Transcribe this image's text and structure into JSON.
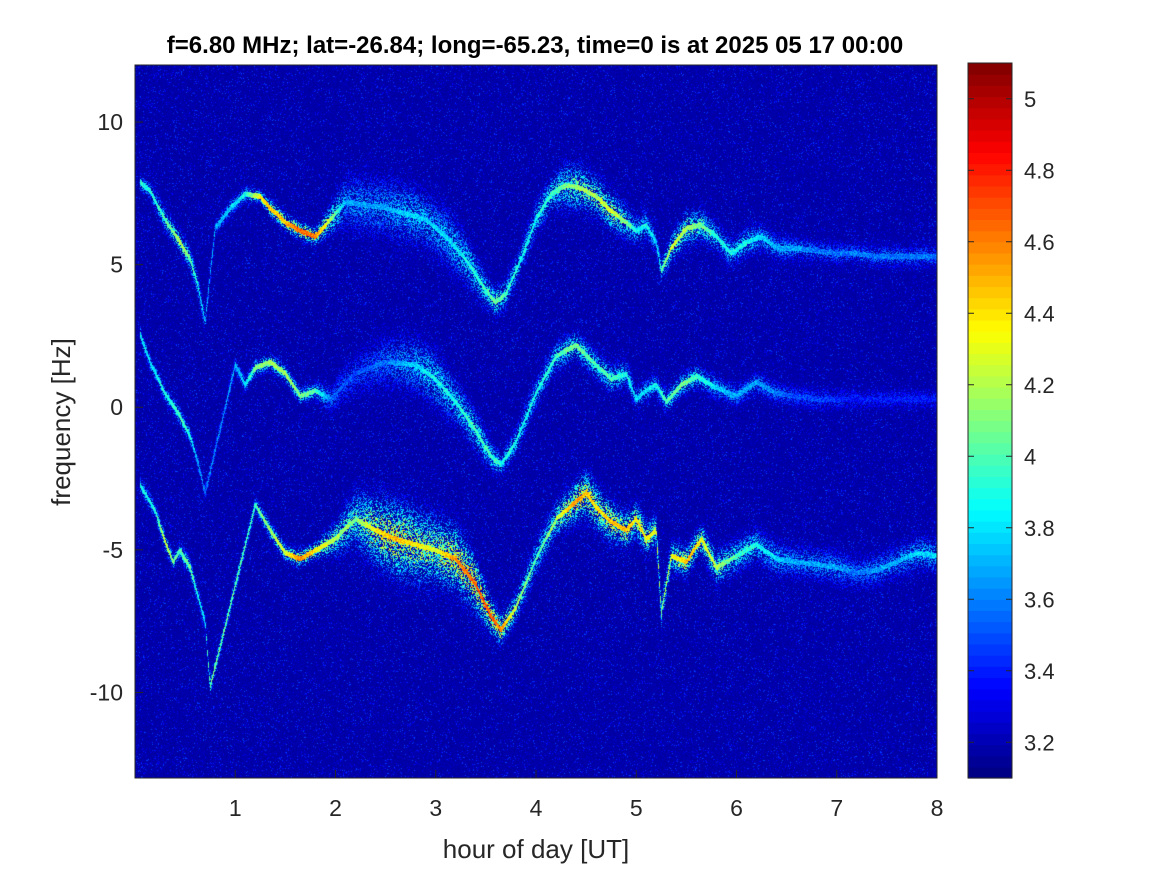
{
  "chart_data": {
    "type": "heatmap",
    "title": "f=6.80 MHz;  lat=-26.84; long=-65.23, time=0 is at 2025 05 17 00:00",
    "xlabel": "hour of day [UT]",
    "ylabel": "frequency [Hz]",
    "xlim": [
      0,
      8
    ],
    "ylim": [
      -13,
      12
    ],
    "x_ticks": [
      1,
      2,
      3,
      4,
      5,
      6,
      7,
      8
    ],
    "x_tick_labels": [
      "1",
      "2",
      "3",
      "4",
      "5",
      "6",
      "7",
      "8"
    ],
    "y_ticks": [
      10,
      5,
      0,
      -5,
      -10
    ],
    "y_tick_labels": [
      "10",
      "5",
      "0",
      "-5",
      "-10"
    ],
    "colorbar": {
      "colormap": "jet",
      "clim": [
        3.1,
        5.1
      ],
      "ticks": [
        5,
        4.8,
        4.6,
        4.4,
        4.2,
        4,
        3.8,
        3.6,
        3.4,
        3.2
      ],
      "tick_labels": [
        "5",
        "4.8",
        "4.6",
        "4.4",
        "4.2",
        "4",
        "3.8",
        "3.6",
        "3.4",
        "3.2"
      ]
    },
    "background_value": 3.15,
    "traces": [
      {
        "name": "upper",
        "x": [
          0.05,
          0.15,
          0.3,
          0.45,
          0.55,
          0.62,
          0.7,
          0.8,
          0.95,
          1.1,
          1.25,
          1.35,
          1.5,
          1.65,
          1.8,
          1.95,
          2.1,
          2.3,
          2.5,
          2.7,
          2.9,
          3.1,
          3.3,
          3.5,
          3.6,
          3.7,
          3.85,
          4.0,
          4.15,
          4.3,
          4.45,
          4.6,
          4.75,
          4.9,
          5.0,
          5.1,
          5.2,
          5.25,
          5.35,
          5.5,
          5.65,
          5.8,
          5.95,
          6.1,
          6.25,
          6.4,
          6.6,
          6.8,
          7.0,
          7.2,
          7.4,
          7.6,
          7.8,
          8.0
        ],
        "y": [
          7.9,
          7.6,
          6.6,
          5.8,
          5.2,
          4.4,
          3.0,
          6.3,
          7.0,
          7.5,
          7.4,
          7.0,
          6.5,
          6.2,
          6.0,
          6.6,
          7.2,
          7.1,
          7.0,
          6.8,
          6.6,
          6.0,
          5.2,
          4.1,
          3.7,
          4.0,
          5.2,
          6.6,
          7.5,
          7.8,
          7.7,
          7.4,
          6.9,
          6.5,
          6.2,
          6.4,
          5.8,
          4.8,
          5.6,
          6.3,
          6.4,
          6.0,
          5.4,
          5.8,
          6.0,
          5.6,
          5.6,
          5.5,
          5.4,
          5.4,
          5.3,
          5.3,
          5.3,
          5.3
        ],
        "intensity": [
          4.0,
          4.0,
          4.1,
          4.3,
          4.2,
          4.0,
          3.8,
          3.8,
          3.9,
          4.0,
          4.5,
          4.6,
          4.6,
          4.8,
          4.7,
          4.3,
          3.8,
          3.8,
          3.8,
          3.9,
          3.9,
          3.9,
          4.0,
          4.1,
          4.2,
          4.1,
          4.0,
          4.0,
          4.1,
          4.2,
          4.3,
          4.3,
          4.4,
          4.2,
          4.0,
          4.0,
          3.9,
          4.1,
          4.4,
          4.3,
          4.2,
          4.0,
          4.0,
          4.0,
          3.9,
          3.8,
          3.8,
          3.7,
          3.7,
          3.7,
          3.7,
          3.7,
          3.7,
          3.7
        ],
        "spread": [
          0.3,
          0.3,
          0.4,
          0.4,
          0.4,
          0.4,
          0.4,
          0.3,
          0.3,
          0.3,
          0.2,
          0.3,
          0.3,
          0.3,
          0.3,
          0.5,
          0.9,
          1.1,
          1.1,
          1.1,
          1.0,
          1.0,
          0.9,
          0.6,
          0.5,
          0.5,
          0.5,
          0.6,
          0.6,
          0.8,
          0.8,
          0.7,
          0.7,
          0.6,
          0.5,
          0.5,
          0.4,
          0.4,
          0.5,
          0.6,
          0.6,
          0.5,
          0.5,
          0.5,
          0.5,
          0.5,
          0.4,
          0.4,
          0.4,
          0.4,
          0.4,
          0.4,
          0.4,
          0.4
        ]
      },
      {
        "name": "middle",
        "x": [
          0.05,
          0.15,
          0.3,
          0.45,
          0.55,
          0.62,
          0.7,
          1.0,
          1.1,
          1.2,
          1.35,
          1.5,
          1.65,
          1.8,
          1.95,
          2.2,
          2.5,
          2.8,
          3.0,
          3.2,
          3.4,
          3.55,
          3.65,
          3.8,
          4.0,
          4.2,
          4.4,
          4.6,
          4.75,
          4.9,
          5.0,
          5.1,
          5.2,
          5.3,
          5.45,
          5.6,
          5.8,
          6.0,
          6.2,
          6.4,
          6.6,
          6.8,
          7.0,
          7.2,
          7.5,
          7.8,
          8.0
        ],
        "y": [
          2.6,
          1.6,
          0.5,
          -0.3,
          -1.0,
          -1.8,
          -3.0,
          1.5,
          0.8,
          1.4,
          1.6,
          1.2,
          0.4,
          0.6,
          0.3,
          1.2,
          1.6,
          1.5,
          1.0,
          0.2,
          -0.8,
          -1.7,
          -2.0,
          -1.2,
          0.5,
          1.8,
          2.2,
          1.5,
          1.0,
          1.2,
          0.3,
          0.6,
          0.8,
          0.2,
          0.8,
          1.1,
          0.7,
          0.4,
          0.9,
          0.5,
          0.4,
          0.3,
          0.3,
          0.3,
          0.3,
          0.3,
          0.3
        ],
        "intensity": [
          4.0,
          3.9,
          4.0,
          4.1,
          4.0,
          3.8,
          3.7,
          3.8,
          3.9,
          4.2,
          4.3,
          4.3,
          4.2,
          4.1,
          3.7,
          3.6,
          3.7,
          3.9,
          4.0,
          4.0,
          4.1,
          4.1,
          4.0,
          4.0,
          4.0,
          4.1,
          4.2,
          4.1,
          4.1,
          4.0,
          3.9,
          3.9,
          4.0,
          4.1,
          4.2,
          4.1,
          3.9,
          3.8,
          3.8,
          3.7,
          3.6,
          3.6,
          3.55,
          3.5,
          3.5,
          3.5,
          3.5
        ],
        "spread": [
          0.3,
          0.3,
          0.3,
          0.3,
          0.3,
          0.3,
          0.3,
          0.3,
          0.3,
          0.3,
          0.3,
          0.3,
          0.3,
          0.3,
          0.5,
          0.8,
          1.0,
          1.0,
          1.0,
          0.8,
          0.7,
          0.5,
          0.4,
          0.5,
          0.5,
          0.5,
          0.5,
          0.5,
          0.5,
          0.5,
          0.4,
          0.4,
          0.4,
          0.4,
          0.4,
          0.4,
          0.4,
          0.4,
          0.4,
          0.4,
          0.4,
          0.4,
          0.4,
          0.4,
          0.4,
          0.4,
          0.4
        ]
      },
      {
        "name": "lower",
        "x": [
          0.05,
          0.2,
          0.3,
          0.38,
          0.45,
          0.55,
          0.62,
          0.7,
          0.75,
          1.2,
          1.35,
          1.5,
          1.65,
          1.8,
          2.0,
          2.2,
          2.4,
          2.6,
          2.8,
          3.0,
          3.2,
          3.4,
          3.55,
          3.65,
          3.8,
          4.0,
          4.2,
          4.4,
          4.5,
          4.6,
          4.75,
          4.9,
          5.0,
          5.1,
          5.2,
          5.25,
          5.35,
          5.5,
          5.65,
          5.8,
          6.0,
          6.2,
          6.4,
          6.6,
          6.8,
          7.0,
          7.2,
          7.4,
          7.6,
          7.8,
          8.0
        ],
        "y": [
          -2.7,
          -3.6,
          -4.7,
          -5.4,
          -5.0,
          -5.6,
          -6.5,
          -7.5,
          -9.8,
          -3.4,
          -4.3,
          -5.1,
          -5.3,
          -5.0,
          -4.6,
          -3.9,
          -4.3,
          -4.6,
          -4.8,
          -5.0,
          -5.3,
          -6.2,
          -7.3,
          -7.8,
          -7.0,
          -5.3,
          -3.9,
          -3.3,
          -3.0,
          -3.5,
          -4.0,
          -4.3,
          -3.9,
          -4.6,
          -4.3,
          -7.2,
          -5.2,
          -5.4,
          -4.6,
          -5.6,
          -5.2,
          -4.8,
          -5.3,
          -5.4,
          -5.5,
          -5.6,
          -5.8,
          -5.7,
          -5.4,
          -5.1,
          -5.2
        ],
        "intensity": [
          4.0,
          4.0,
          4.4,
          4.2,
          4.1,
          4.2,
          4.0,
          3.9,
          4.2,
          4.1,
          4.3,
          4.4,
          4.7,
          4.5,
          4.3,
          4.2,
          4.5,
          4.6,
          4.5,
          4.4,
          4.7,
          4.8,
          4.8,
          4.7,
          4.3,
          4.1,
          4.3,
          4.7,
          4.6,
          4.5,
          4.6,
          4.6,
          4.5,
          4.5,
          4.4,
          4.2,
          4.4,
          4.6,
          4.5,
          4.3,
          4.1,
          4.0,
          3.9,
          3.8,
          3.8,
          3.8,
          3.7,
          3.8,
          3.8,
          3.9,
          3.9
        ],
        "spread": [
          0.3,
          0.3,
          0.3,
          0.3,
          0.3,
          0.3,
          0.3,
          0.3,
          0.3,
          0.3,
          0.3,
          0.3,
          0.3,
          0.3,
          0.6,
          1.0,
          1.2,
          1.3,
          1.3,
          1.2,
          1.1,
          0.9,
          0.6,
          0.5,
          0.5,
          0.6,
          0.6,
          0.7,
          0.8,
          0.8,
          0.7,
          0.6,
          0.6,
          0.6,
          0.5,
          0.5,
          0.5,
          0.5,
          0.5,
          0.6,
          0.6,
          0.6,
          0.6,
          0.6,
          0.6,
          0.6,
          0.6,
          0.6,
          0.6,
          0.6,
          0.6
        ]
      }
    ]
  }
}
